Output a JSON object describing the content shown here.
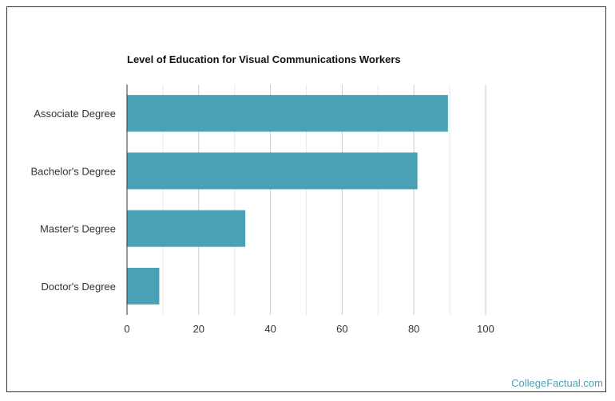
{
  "chart_data": {
    "type": "bar",
    "orientation": "horizontal",
    "title": "Level of Education for Visual Communications Workers",
    "categories": [
      "Associate Degree",
      "Bachelor's Degree",
      "Master's Degree",
      "Doctor's Degree"
    ],
    "values": [
      89.5,
      81,
      33,
      9
    ],
    "xlim": [
      0,
      100
    ],
    "xticks": [
      "0",
      "20",
      "40",
      "60",
      "80",
      "100"
    ],
    "grid": true,
    "bar_color": "#4aa0b4"
  },
  "watermark": "CollegeFactual.com"
}
